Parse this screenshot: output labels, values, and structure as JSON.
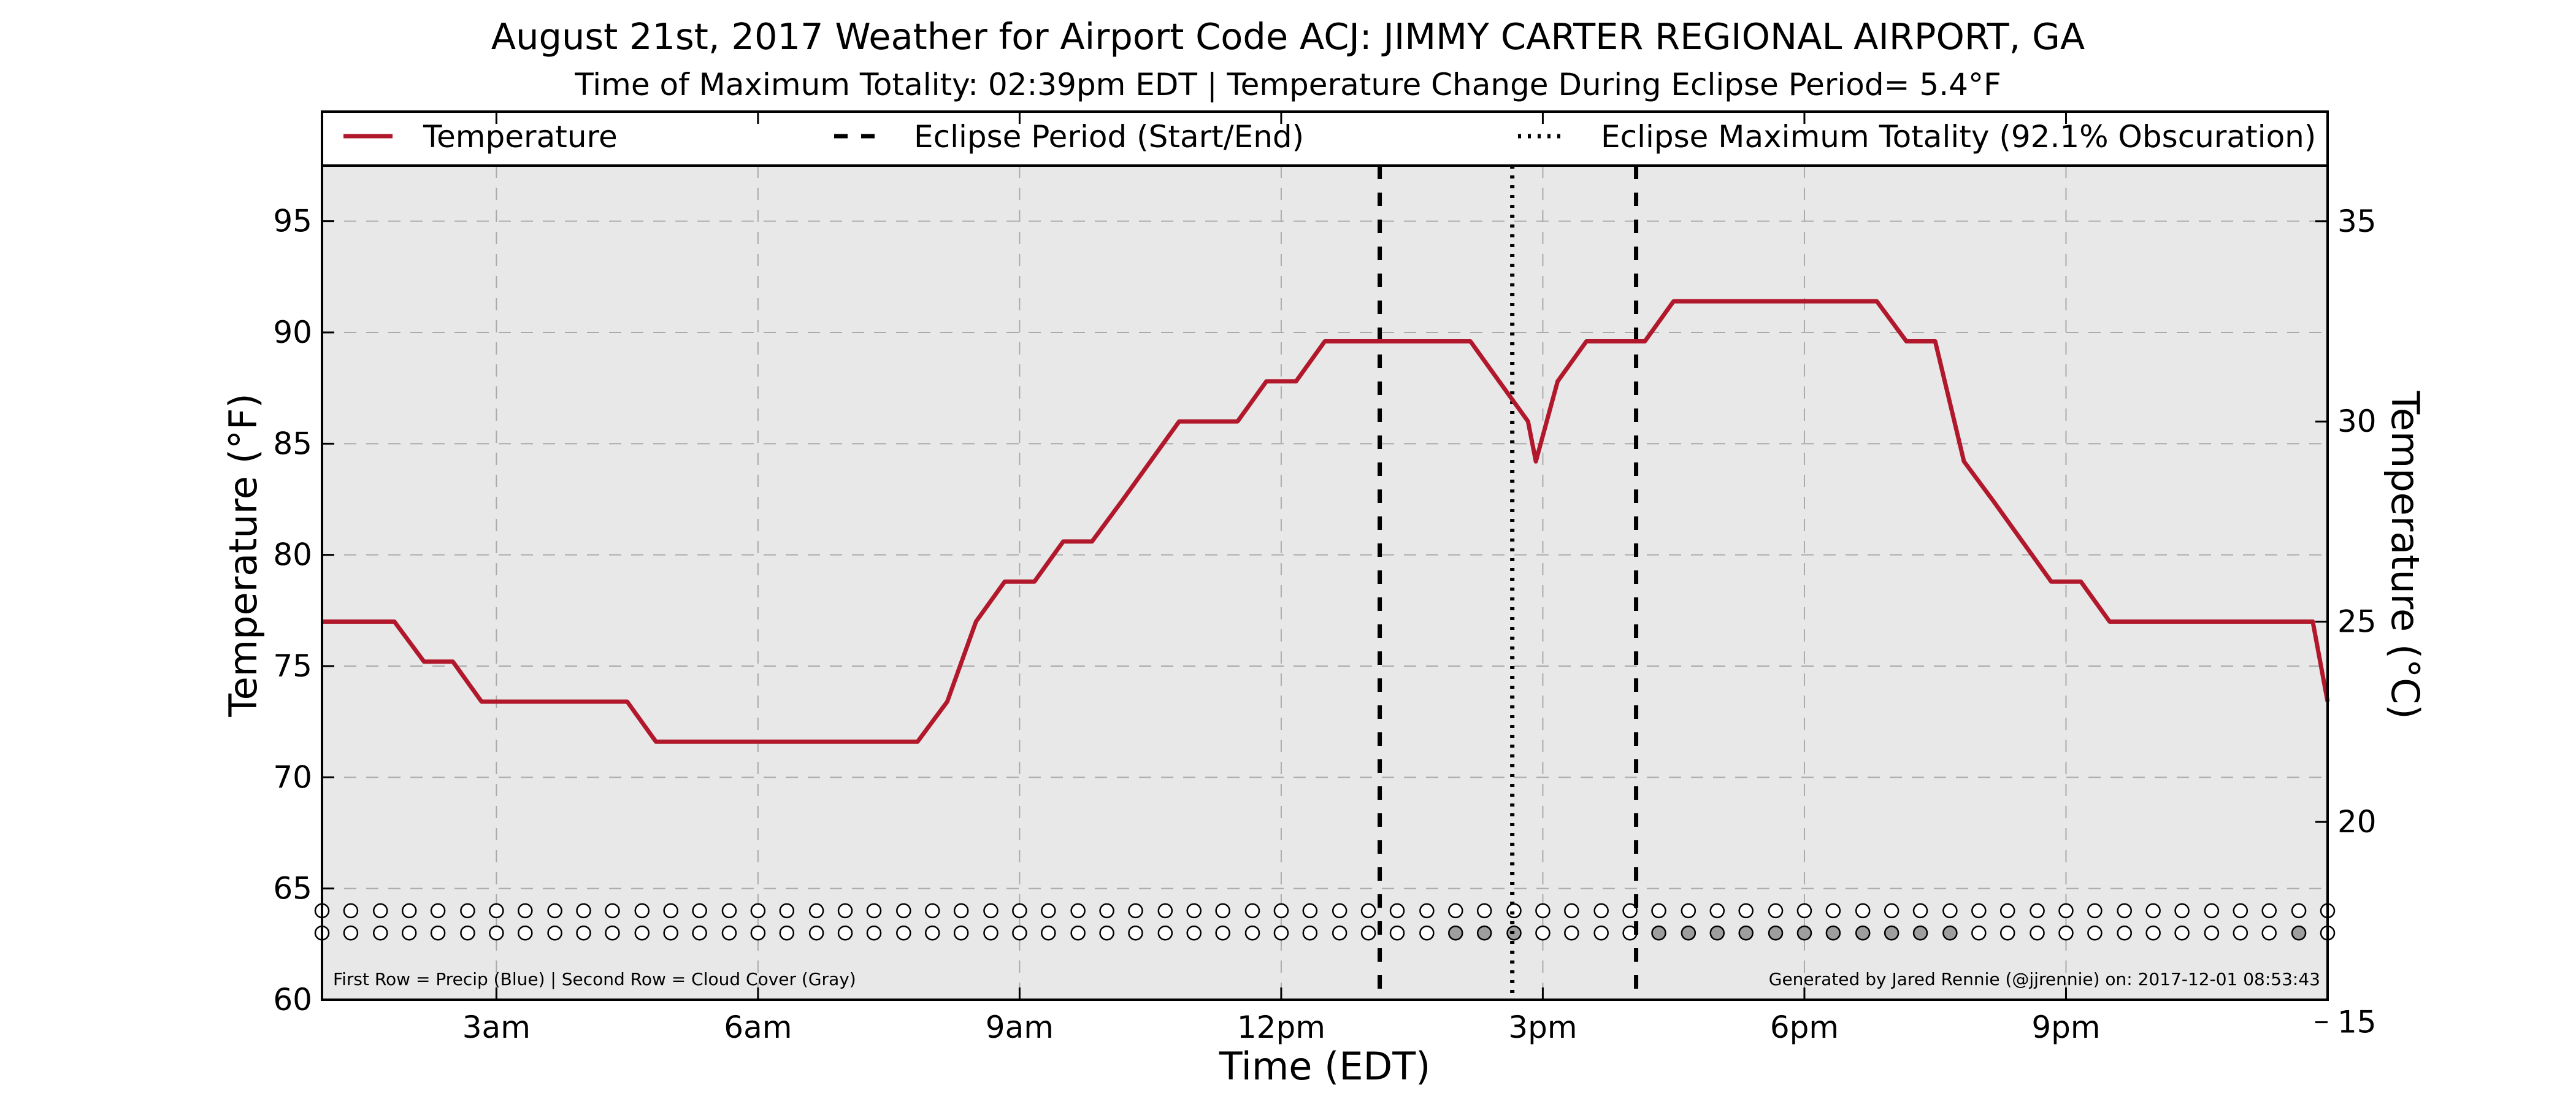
{
  "chart_data": {
    "type": "line",
    "title": "August 21st, 2017 Weather for Airport Code ACJ: JIMMY CARTER REGIONAL AIRPORT, GA",
    "subtitle": "Time of Maximum Totality: 02:39pm EDT | Temperature Change During Eclipse Period= 5.4°F",
    "xlabel": "Time (EDT)",
    "ylabel": "Temperature (°F)",
    "y2label": "Temperature (°C)",
    "xlim": [
      1.0,
      24.0
    ],
    "ylim": [
      60,
      97.5
    ],
    "y2lim": [
      15.56,
      36.39
    ],
    "x_ticks": [
      {
        "x": 3,
        "label": "3am"
      },
      {
        "x": 6,
        "label": "6am"
      },
      {
        "x": 9,
        "label": "9am"
      },
      {
        "x": 12,
        "label": "12pm"
      },
      {
        "x": 15,
        "label": "3pm"
      },
      {
        "x": 18,
        "label": "6pm"
      },
      {
        "x": 21,
        "label": "9pm"
      }
    ],
    "y_ticks": [
      60,
      65,
      70,
      75,
      80,
      85,
      90,
      95
    ],
    "y2_ticks": [
      15,
      20,
      25,
      30,
      35
    ],
    "grid": true,
    "legend": {
      "placement": "top",
      "entries": [
        {
          "label": "Temperature",
          "style": "solid"
        },
        {
          "label": "Eclipse Period (Start/End)",
          "style": "dashed"
        },
        {
          "label": "Eclipse Maximum Totality (92.1% Obscuration)",
          "style": "dotted"
        }
      ]
    },
    "series": [
      {
        "name": "Temperature",
        "color": "#b2182b",
        "x": [
          1.0,
          1.83,
          2.17,
          2.5,
          2.83,
          3.17,
          3.5,
          3.83,
          4.17,
          4.5,
          4.83,
          5.17,
          5.5,
          5.83,
          6.17,
          6.5,
          6.83,
          7.17,
          7.5,
          7.83,
          8.17,
          8.5,
          8.83,
          9.17,
          9.5,
          9.83,
          10.17,
          10.5,
          10.83,
          11.17,
          11.5,
          11.83,
          12.17,
          12.5,
          12.83,
          13.17,
          13.5,
          13.83,
          14.17,
          14.5,
          14.83,
          14.92,
          15.17,
          15.5,
          15.83,
          16.17,
          16.5,
          16.83,
          17.17,
          17.5,
          17.83,
          18.17,
          18.5,
          18.83,
          19.17,
          19.5,
          19.83,
          20.17,
          20.5,
          20.83,
          21.17,
          21.5,
          21.83,
          22.17,
          22.5,
          22.83,
          23.17,
          23.5,
          23.83,
          24.0
        ],
        "values": [
          77.0,
          77.0,
          75.2,
          75.2,
          73.4,
          73.4,
          73.4,
          73.4,
          73.4,
          73.4,
          71.6,
          71.6,
          71.6,
          71.6,
          71.6,
          71.6,
          71.6,
          71.6,
          71.6,
          71.6,
          73.4,
          77.0,
          78.8,
          78.8,
          80.6,
          80.6,
          82.4,
          84.2,
          86.0,
          86.0,
          86.0,
          87.8,
          87.8,
          89.6,
          89.6,
          89.6,
          89.6,
          89.6,
          89.6,
          87.8,
          86.0,
          84.2,
          87.8,
          89.6,
          89.6,
          89.6,
          91.4,
          91.4,
          91.4,
          91.4,
          91.4,
          91.4,
          91.4,
          91.4,
          89.6,
          89.6,
          84.2,
          82.4,
          80.6,
          78.8,
          78.8,
          77.0,
          77.0,
          77.0,
          77.0,
          77.0,
          77.0,
          77.0,
          77.0,
          73.4
        ]
      }
    ],
    "eclipse": {
      "start": 13.13,
      "max_totality": 14.65,
      "end": 16.07
    },
    "indicator_rows": {
      "y_precip": 64.0,
      "y_cloud": 63.0,
      "x": [
        1.0,
        1.33,
        1.67,
        2.0,
        2.33,
        2.67,
        3.0,
        3.33,
        3.67,
        4.0,
        4.33,
        4.67,
        5.0,
        5.33,
        5.67,
        6.0,
        6.33,
        6.67,
        7.0,
        7.33,
        7.67,
        8.0,
        8.33,
        8.67,
        9.0,
        9.33,
        9.67,
        10.0,
        10.33,
        10.67,
        11.0,
        11.33,
        11.67,
        12.0,
        12.33,
        12.67,
        13.0,
        13.33,
        13.67,
        14.0,
        14.33,
        14.67,
        15.0,
        15.33,
        15.67,
        16.0,
        16.33,
        16.67,
        17.0,
        17.33,
        17.67,
        18.0,
        18.33,
        18.67,
        19.0,
        19.33,
        19.67,
        20.0,
        20.33,
        20.67,
        21.0,
        21.33,
        21.67,
        22.0,
        22.33,
        22.67,
        23.0,
        23.33,
        23.67,
        24.0
      ],
      "cloud_gray_x": [
        14.0,
        14.33,
        14.67,
        16.33,
        16.67,
        17.0,
        17.33,
        17.67,
        18.0,
        18.33,
        18.67,
        19.0,
        19.33,
        19.67,
        23.67
      ],
      "precip_color": "#ffffff",
      "cloud_gray_color": "#9e9e9e"
    },
    "footnote_left": "First Row = Precip (Blue) | Second Row = Cloud Cover (Gray)",
    "footnote_right": "Generated by Jared Rennie (@jjrennie) on: 2017-12-01 08:53:43"
  }
}
